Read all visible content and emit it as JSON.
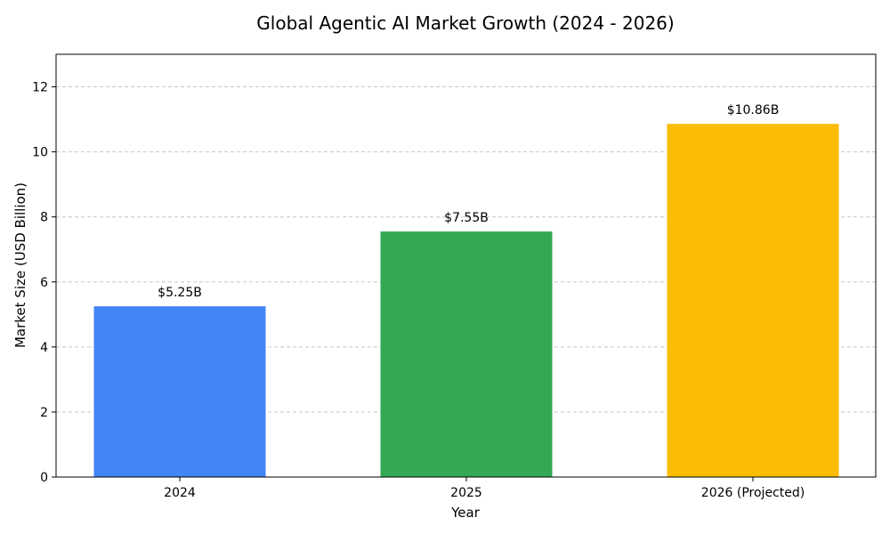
{
  "chart_data": {
    "type": "bar",
    "title": "Global Agentic AI Market Growth (2024 - 2026)",
    "xlabel": "Year",
    "ylabel": "Market Size (USD Billion)",
    "categories": [
      "2024",
      "2025",
      "2026 (Projected)"
    ],
    "values": [
      5.25,
      7.55,
      10.86
    ],
    "data_labels": [
      "$5.25B",
      "$7.55B",
      "$10.86B"
    ],
    "colors": [
      "#4285F4",
      "#34A853",
      "#FBBC05"
    ],
    "ylim": [
      0,
      13
    ],
    "yticks": [
      0,
      2,
      4,
      6,
      8,
      10,
      12
    ],
    "grid": true,
    "grid_axis": "y",
    "legend": "none"
  }
}
